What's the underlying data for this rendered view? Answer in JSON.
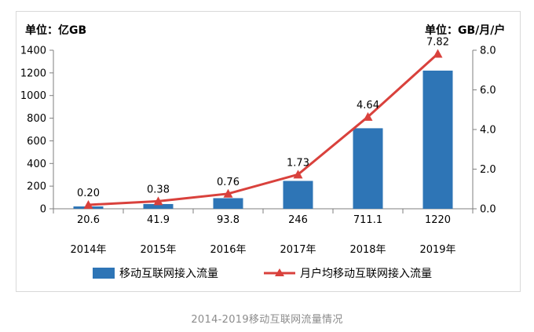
{
  "caption": "2014-2019移动互联网流量情况",
  "chart_data": {
    "type": "bar+line",
    "categories": [
      "2014年",
      "2015年",
      "2016年",
      "2017年",
      "2018年",
      "2019年"
    ],
    "series": [
      {
        "name": "移动互联网接入流量",
        "type": "bar",
        "axis": "left",
        "color": "#2e75b6",
        "values": [
          20.6,
          41.9,
          93.8,
          246,
          711.1,
          1220
        ],
        "labels": [
          "20.6",
          "41.9",
          "93.8",
          "246",
          "711.1",
          "1220"
        ]
      },
      {
        "name": "月户均移动互联网接入流量",
        "type": "line",
        "axis": "right",
        "color": "#d9413c",
        "marker": "triangle",
        "values": [
          0.2,
          0.38,
          0.76,
          1.73,
          4.64,
          7.82
        ],
        "labels": [
          "0.20",
          "0.38",
          "0.76",
          "1.73",
          "4.64",
          "7.82"
        ]
      }
    ],
    "y_left": {
      "unit_label": "单位：亿GB",
      "range": [
        0,
        1400
      ],
      "ticks": [
        0,
        200,
        400,
        600,
        800,
        1000,
        1200,
        1400
      ],
      "tick_labels": [
        "0",
        "200",
        "400",
        "600",
        "800",
        "1000",
        "1200",
        "1400"
      ]
    },
    "y_right": {
      "unit_label": "单位：GB/月/户",
      "range": [
        0,
        8
      ],
      "ticks": [
        0,
        2,
        4,
        6,
        8
      ],
      "tick_labels": [
        "0.0",
        "2.0",
        "4.0",
        "6.0",
        "8.0"
      ]
    },
    "legend_position": "bottom",
    "grid": false
  }
}
